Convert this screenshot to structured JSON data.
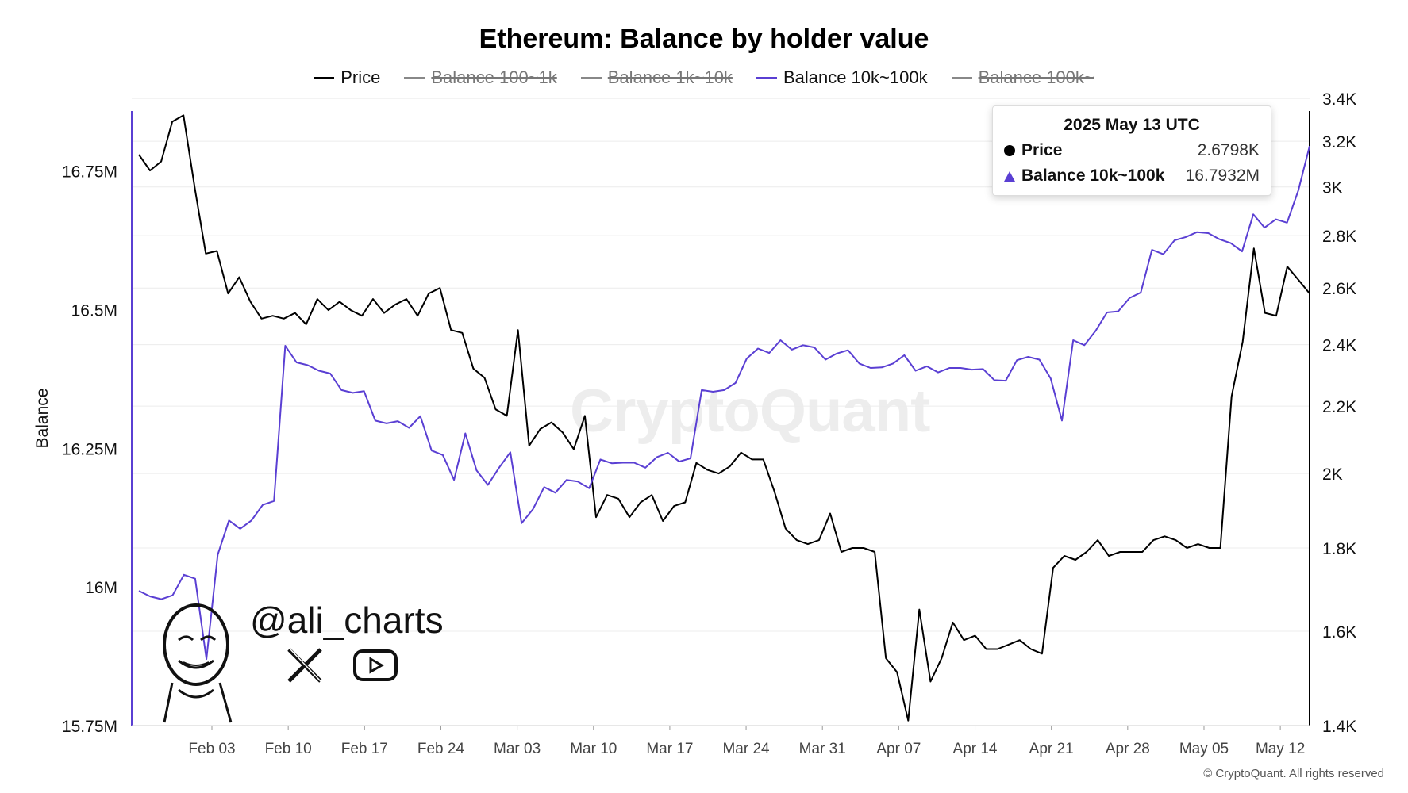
{
  "title": "Ethereum: Balance by holder value",
  "legend": [
    {
      "label": "Price",
      "color": "#000000",
      "enabled": true
    },
    {
      "label": "Balance 100~1k",
      "color": "#888888",
      "enabled": false
    },
    {
      "label": "Balance 1k~10k",
      "color": "#888888",
      "enabled": false
    },
    {
      "label": "Balance 10k~100k",
      "color": "#5a3fd3",
      "enabled": true
    },
    {
      "label": "Balance 100k~",
      "color": "#888888",
      "enabled": false
    }
  ],
  "tooltip": {
    "date": "2025 May 13 UTC",
    "rows": [
      {
        "name": "Price",
        "value": "2.6798K",
        "marker": "circle"
      },
      {
        "name": "Balance 10k~100k",
        "value": "16.7932M",
        "marker": "triangle"
      }
    ]
  },
  "watermark": "CryptoQuant",
  "branding": {
    "handle": "@ali_charts",
    "icons": [
      "avatar-illustration",
      "x-logo-icon",
      "youtube-icon"
    ]
  },
  "copyright": "© CryptoQuant. All rights reserved",
  "chart_data": {
    "type": "line",
    "title": "Ethereum: Balance by holder value",
    "ylabel_left": "Balance",
    "ylabel_right": "",
    "x_ticks": [
      "Feb 03",
      "Feb 10",
      "Feb 17",
      "Feb 24",
      "Mar 03",
      "Mar 10",
      "Mar 17",
      "Mar 24",
      "Mar 31",
      "Apr 07",
      "Apr 14",
      "Apr 21",
      "Apr 28",
      "May 05",
      "May 12"
    ],
    "left_axis": {
      "ticks": [
        "16.75M",
        "16.5M",
        "16.25M",
        "16M",
        "15.75M"
      ],
      "tick_values": [
        16.75,
        16.5,
        16.25,
        16.0,
        15.75
      ],
      "min": 15.75,
      "max": 16.8583
    },
    "right_axis": {
      "ticks": [
        "3.4K",
        "3.2K",
        "3K",
        "2.8K",
        "2.6K",
        "2.4K",
        "2.2K",
        "2K",
        "1.8K",
        "1.6K",
        "1.4K"
      ],
      "tick_values": [
        3.4,
        3.2,
        3.0,
        2.8,
        2.6,
        2.4,
        2.2,
        2.0,
        1.8,
        1.6,
        1.4
      ],
      "scale": "log"
    },
    "x_start_date": "2025-01-27",
    "series": [
      {
        "name": "Price",
        "axis": "right",
        "color": "#000000",
        "values": [
          3.14,
          3.07,
          3.11,
          3.29,
          3.32,
          3.0,
          2.73,
          2.74,
          2.58,
          2.64,
          2.55,
          2.49,
          2.5,
          2.49,
          2.51,
          2.47,
          2.56,
          2.52,
          2.55,
          2.52,
          2.5,
          2.56,
          2.51,
          2.54,
          2.56,
          2.5,
          2.58,
          2.6,
          2.45,
          2.44,
          2.32,
          2.29,
          2.19,
          2.17,
          2.45,
          2.08,
          2.13,
          2.15,
          2.12,
          2.07,
          2.17,
          1.88,
          1.94,
          1.93,
          1.88,
          1.92,
          1.94,
          1.87,
          1.91,
          1.92,
          2.03,
          2.01,
          2.0,
          2.02,
          2.06,
          2.04,
          2.04,
          1.95,
          1.85,
          1.82,
          1.81,
          1.82,
          1.89,
          1.79,
          1.8,
          1.8,
          1.79,
          1.54,
          1.51,
          1.41,
          1.65,
          1.49,
          1.54,
          1.62,
          1.58,
          1.59,
          1.56,
          1.56,
          1.57,
          1.58,
          1.56,
          1.55,
          1.75,
          1.78,
          1.77,
          1.79,
          1.82,
          1.78,
          1.79,
          1.79,
          1.79,
          1.82,
          1.83,
          1.82,
          1.8,
          1.81,
          1.8,
          1.8,
          2.23,
          2.41,
          2.75,
          2.51,
          2.5,
          2.68,
          2.63,
          2.58
        ]
      },
      {
        "name": "Balance 10k~100k",
        "axis": "left",
        "color": "#5a3fd3",
        "values": [
          15.993,
          15.983,
          15.978,
          15.985,
          16.022,
          16.015,
          15.87,
          16.058,
          16.12,
          16.105,
          16.12,
          16.148,
          16.155,
          16.435,
          16.405,
          16.4,
          16.39,
          16.385,
          16.355,
          16.35,
          16.353,
          16.3,
          16.295,
          16.299,
          16.287,
          16.308,
          16.246,
          16.238,
          16.193,
          16.277,
          16.21,
          16.184,
          16.215,
          16.243,
          16.115,
          16.14,
          16.18,
          16.17,
          16.193,
          16.19,
          16.178,
          16.23,
          16.223,
          16.224,
          16.224,
          16.215,
          16.234,
          16.242,
          16.226,
          16.232,
          16.355,
          16.352,
          16.355,
          16.368,
          16.412,
          16.43,
          16.422,
          16.445,
          16.428,
          16.436,
          16.432,
          16.41,
          16.421,
          16.427,
          16.403,
          16.395,
          16.396,
          16.403,
          16.418,
          16.39,
          16.398,
          16.387,
          16.395,
          16.395,
          16.392,
          16.393,
          16.373,
          16.372,
          16.409,
          16.415,
          16.41,
          16.376,
          16.3,
          16.445,
          16.436,
          16.462,
          16.495,
          16.497,
          16.521,
          16.531,
          16.608,
          16.6,
          16.625,
          16.631,
          16.64,
          16.638,
          16.627,
          16.62,
          16.605,
          16.672,
          16.648,
          16.663,
          16.657,
          16.715,
          16.795
        ]
      }
    ]
  }
}
